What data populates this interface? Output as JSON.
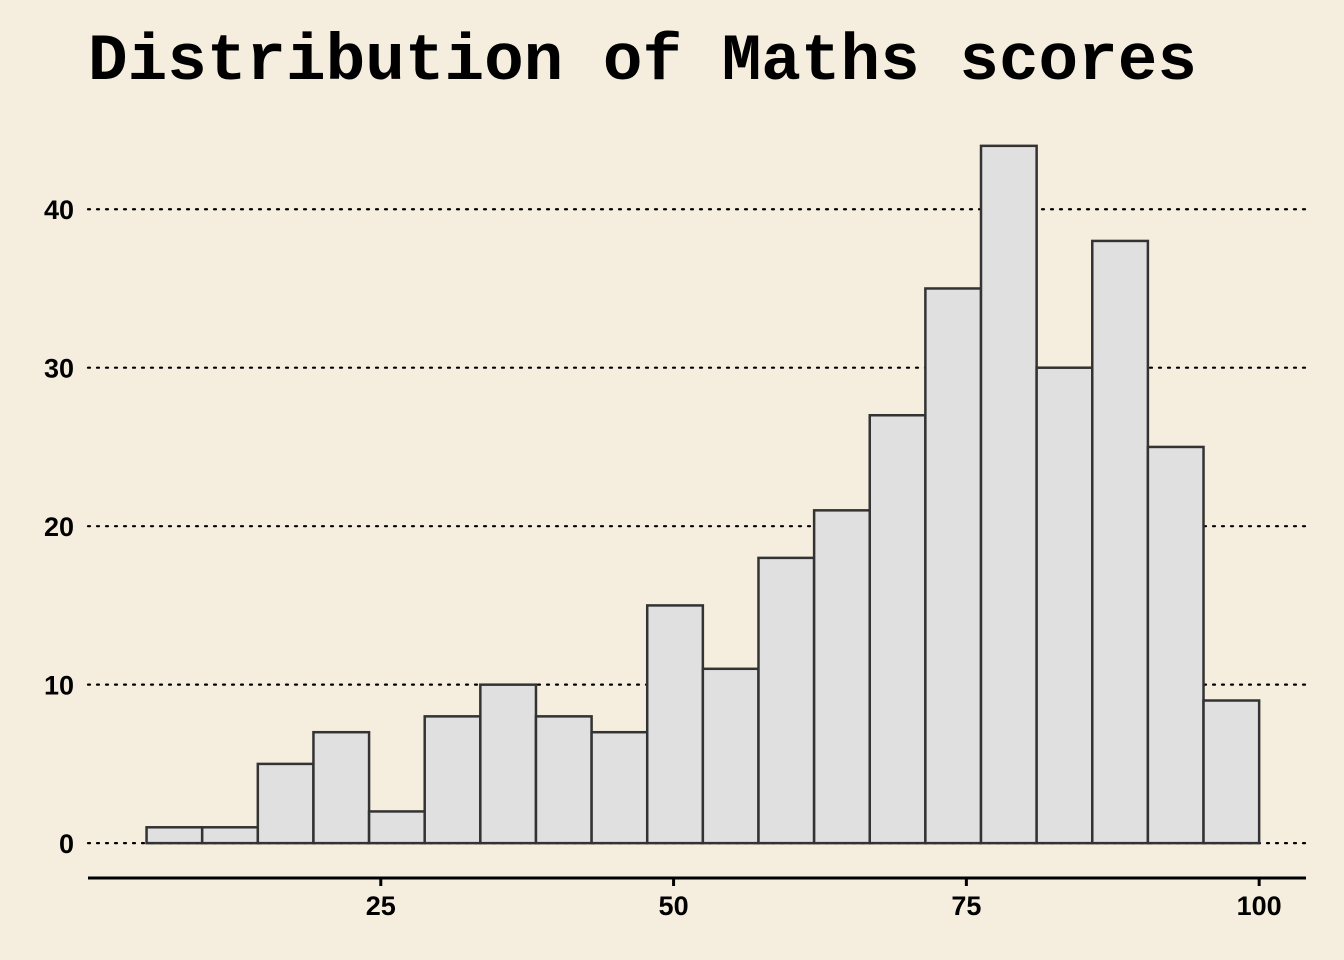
{
  "chart_data": {
    "type": "bar",
    "title": "Distribution of Maths scores",
    "xlabel": "",
    "ylabel": "",
    "bin_width": 4.75,
    "bin_start": 5,
    "values": [
      1,
      1,
      5,
      7,
      2,
      8,
      10,
      8,
      7,
      15,
      11,
      18,
      21,
      27,
      35,
      44,
      30,
      38,
      25,
      9
    ],
    "xlim": [
      0,
      104
    ],
    "ylim": [
      -2.2,
      45
    ],
    "x_ticks": [
      25,
      50,
      75,
      100
    ],
    "y_ticks": [
      0,
      10,
      20,
      30,
      40
    ],
    "grid": "horizontal dotted",
    "legend": "none"
  },
  "colors": {
    "background": "#F5EEDF",
    "bar_fill": "#E0E0E0",
    "bar_stroke": "#333333",
    "grid": "#000000",
    "text": "#000000"
  }
}
